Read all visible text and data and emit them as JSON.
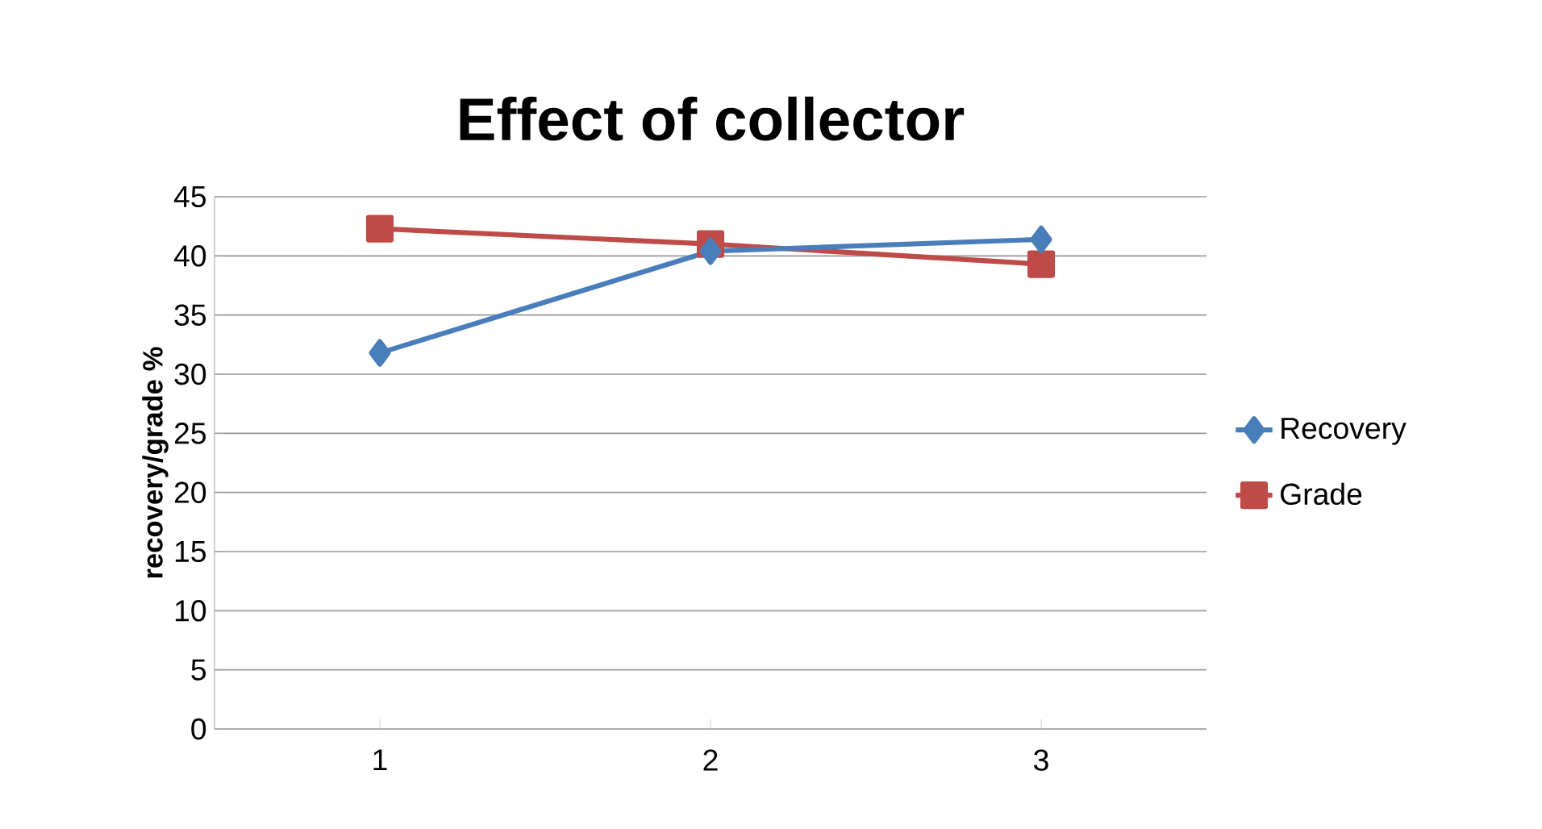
{
  "chart_data": {
    "type": "line",
    "title": "Effect of collector",
    "ylabel": "recovery/grade %",
    "categories": [
      "1",
      "2",
      "3"
    ],
    "series": [
      {
        "name": "Recovery",
        "color": "#4a7ebb",
        "marker": "diamond",
        "values": [
          31.8,
          40.4,
          41.4
        ]
      },
      {
        "name": "Grade",
        "color": "#be4b48",
        "marker": "square",
        "values": [
          42.3,
          41.0,
          39.3
        ]
      }
    ],
    "ylim": [
      0,
      45
    ],
    "yticks": [
      0,
      5,
      10,
      15,
      20,
      25,
      30,
      35,
      40,
      45
    ],
    "grid": "y",
    "legend": "right",
    "line_style": "solid"
  }
}
